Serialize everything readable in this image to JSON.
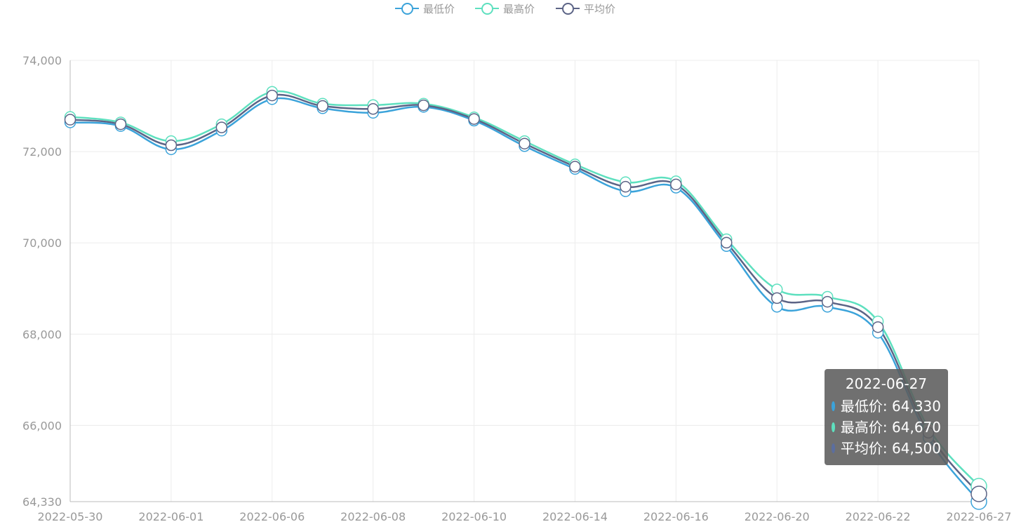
{
  "colors": {
    "low": "#3ba3da",
    "high": "#5ee0bf",
    "avg": "#5c6486",
    "avg_dot": "#5b6ea0",
    "axis": "#bbbbbb",
    "grid": "#ececec",
    "label": "#999999"
  },
  "legend": [
    {
      "name": "最低价",
      "color_key": "low"
    },
    {
      "name": "最高价",
      "color_key": "high"
    },
    {
      "name": "平均价",
      "color_key": "avg"
    }
  ],
  "tooltip": {
    "date": "2022-06-27",
    "rows": [
      {
        "label": "最低价: 64,330",
        "color_key": "low"
      },
      {
        "label": "最高价: 64,670",
        "color_key": "high"
      },
      {
        "label": "平均价: 64,500",
        "color_key": "avg_dot"
      }
    ]
  },
  "chart_data": {
    "type": "line",
    "smooth": true,
    "x": [
      "2022-05-30",
      "2022-05-31",
      "2022-06-01",
      "2022-06-02",
      "2022-06-06",
      "2022-06-07",
      "2022-06-08",
      "2022-06-09",
      "2022-06-10",
      "2022-06-13",
      "2022-06-14",
      "2022-06-15",
      "2022-06-16",
      "2022-06-17",
      "2022-06-20",
      "2022-06-21",
      "2022-06-22",
      "2022-06-23",
      "2022-06-27"
    ],
    "x_tick_labels": [
      "2022-05-30",
      "2022-06-01",
      "2022-06-06",
      "2022-06-08",
      "2022-06-10",
      "2022-06-14",
      "2022-06-16",
      "2022-06-20",
      "2022-06-22",
      "2022-06-27"
    ],
    "series": [
      {
        "name": "最低价",
        "color_key": "low",
        "values": [
          72640,
          72560,
          72050,
          72460,
          73150,
          72950,
          72850,
          72980,
          72680,
          72120,
          71620,
          71130,
          71210,
          69930,
          68600,
          68600,
          68030,
          65730,
          64330
        ]
      },
      {
        "name": "最高价",
        "color_key": "high",
        "values": [
          72760,
          72640,
          72230,
          72600,
          73310,
          73050,
          73020,
          73050,
          72750,
          72230,
          71720,
          71330,
          71350,
          70080,
          68980,
          68820,
          68280,
          65950,
          64670
        ]
      },
      {
        "name": "平均价",
        "color_key": "avg",
        "values": [
          72700,
          72600,
          72140,
          72530,
          73230,
          73000,
          72935,
          73015,
          72715,
          72175,
          71670,
          71230,
          71280,
          70005,
          68790,
          68710,
          68155,
          65840,
          64500
        ]
      }
    ],
    "y_ticks": [
      64330,
      66000,
      68000,
      70000,
      72000,
      74000
    ],
    "y_tick_labels": [
      "64,330",
      "66,000",
      "68,000",
      "70,000",
      "72,000",
      "74,000"
    ],
    "ylim": [
      64330,
      74000
    ],
    "grid": true,
    "legend_position": "top-center"
  }
}
